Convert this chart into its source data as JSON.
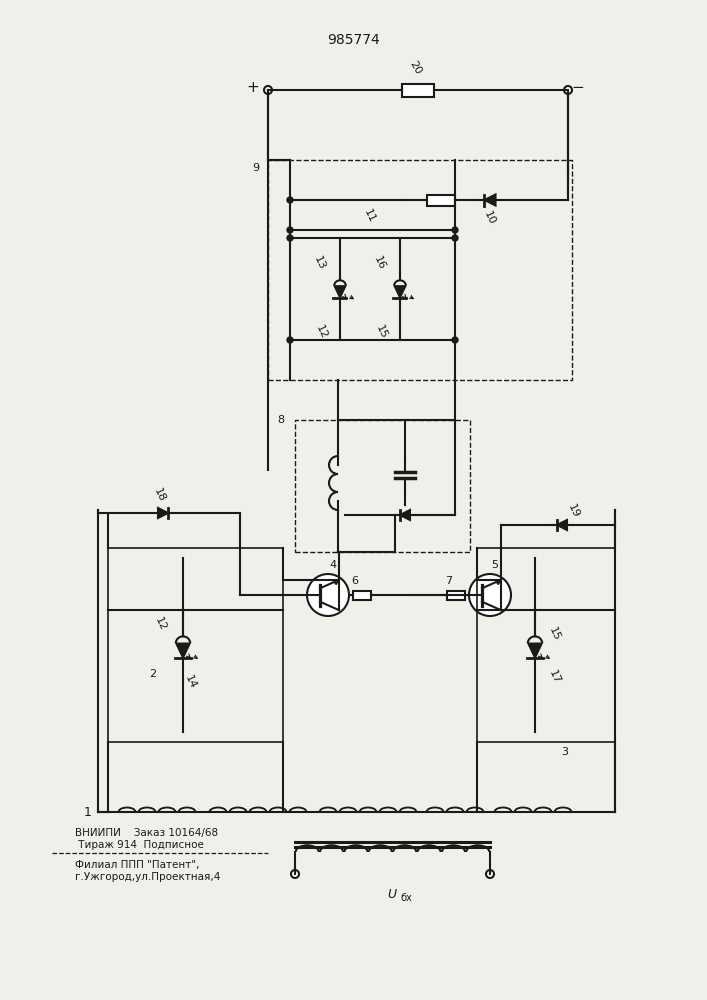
{
  "title": "985774",
  "bg_color": "#f0f0eb",
  "line_color": "#1a1a1a",
  "line_width": 1.5,
  "footer_lines": [
    "ВНИИПИ    Заказ 10164/68",
    " Тираж 914  Подписное",
    "Филиал ППП \"Патент\",",
    "г.Ужгород,ул.Проектная,4"
  ]
}
